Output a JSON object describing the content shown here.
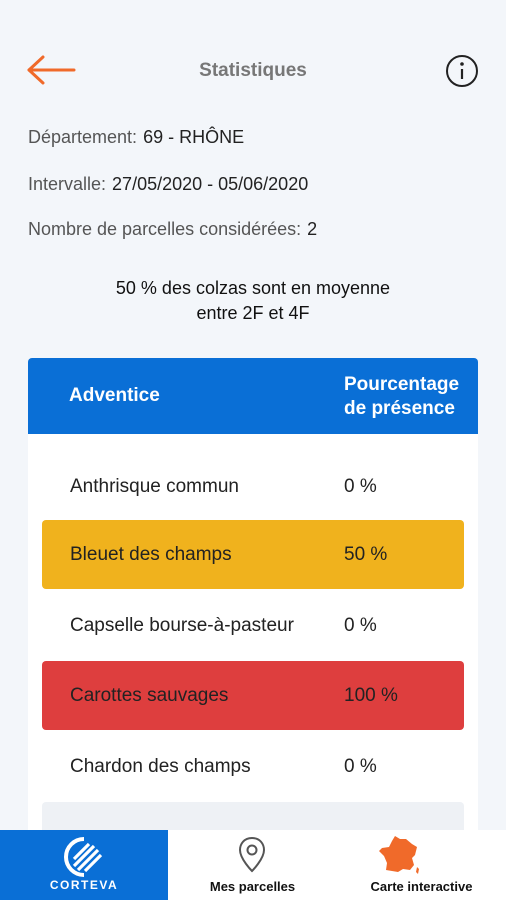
{
  "header": {
    "title": "Statistiques"
  },
  "meta": {
    "department_label": "Département:",
    "department_value": "69 - RHÔNE",
    "interval_label": "Intervalle:",
    "interval_value": "27/05/2020 - 05/06/2020",
    "parcels_label": "Nombre de parcelles considérées:",
    "parcels_value": "2"
  },
  "summary": {
    "line1": "50 % des colzas sont en moyenne",
    "line2": "entre 2F et 4F"
  },
  "table": {
    "col_weed": "Adventice",
    "col_presence_line1": "Pourcentage",
    "col_presence_line2": "de présence",
    "rows": [
      {
        "name": "Anthrisque commun",
        "pct": "0 %",
        "level": "none"
      },
      {
        "name": "Bleuet des champs",
        "pct": "50 %",
        "level": "medium"
      },
      {
        "name": "Capselle bourse-à-pasteur",
        "pct": "0 %",
        "level": "none"
      },
      {
        "name": "Carottes sauvages",
        "pct": "100 %",
        "level": "high"
      },
      {
        "name": "Chardon des champs",
        "pct": "0 %",
        "level": "none"
      }
    ]
  },
  "colors": {
    "brand_blue": "#0a6fd6",
    "accent_orange": "#f06a2a",
    "medium_yellow": "#f0b21d",
    "high_red": "#de3e3e"
  },
  "nav": {
    "brand": "CORTEVA",
    "item1": "Mes parcelles",
    "item2": "Carte interactive"
  }
}
